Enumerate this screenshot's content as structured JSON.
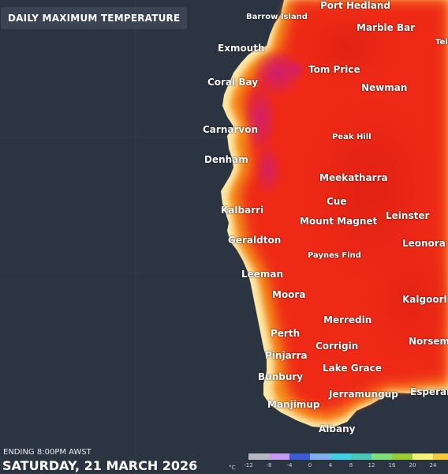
{
  "header": {
    "title": "DAILY MAXIMUM TEMPERATURE"
  },
  "colors": {
    "ocean": "#2b3441",
    "land_hot": "#ef2b16",
    "land_coast": "#f79a1c",
    "land_pale": "#fdeeb4",
    "purple_hotspot": "#c81a84"
  },
  "places": [
    {
      "name": "Barrow Island",
      "size": "small"
    },
    {
      "name": "Port Hedland",
      "size": "big"
    },
    {
      "name": "Marble Bar",
      "size": "big"
    },
    {
      "name": "Telf",
      "size": "small"
    },
    {
      "name": "Exmouth",
      "size": "big"
    },
    {
      "name": "Tom Price",
      "size": "big"
    },
    {
      "name": "Coral Bay",
      "size": "big"
    },
    {
      "name": "Newman",
      "size": "big"
    },
    {
      "name": "Carnarvon",
      "size": "big"
    },
    {
      "name": "Peak Hill",
      "size": "small"
    },
    {
      "name": "Denham",
      "size": "big"
    },
    {
      "name": "Meekatharra",
      "size": "big"
    },
    {
      "name": "Cue",
      "size": "big"
    },
    {
      "name": "Kalbarri",
      "size": "big"
    },
    {
      "name": "Leinster",
      "size": "big"
    },
    {
      "name": "Mount Magnet",
      "size": "big"
    },
    {
      "name": "Geraldton",
      "size": "big"
    },
    {
      "name": "Leonora",
      "size": "big"
    },
    {
      "name": "Paynes Find",
      "size": "small"
    },
    {
      "name": "Leeman",
      "size": "big"
    },
    {
      "name": "Moora",
      "size": "big"
    },
    {
      "name": "Kalgoorlie",
      "size": "big"
    },
    {
      "name": "Merredin",
      "size": "big"
    },
    {
      "name": "Perth",
      "size": "big"
    },
    {
      "name": "Norseman",
      "size": "big"
    },
    {
      "name": "Corrigin",
      "size": "big"
    },
    {
      "name": "Pinjarra",
      "size": "big"
    },
    {
      "name": "Lake Grace",
      "size": "big"
    },
    {
      "name": "Bunbury",
      "size": "big"
    },
    {
      "name": "Esperance",
      "size": "big"
    },
    {
      "name": "Jerramungup",
      "size": "big"
    },
    {
      "name": "Manjimup",
      "size": "big"
    },
    {
      "name": "Albany",
      "size": "big"
    }
  ],
  "footer": {
    "ending": "ENDING 8:00PM AWST",
    "date": "SATURDAY, 21 MARCH 2026"
  },
  "legend": {
    "unit": "°C",
    "labels": [
      "-12",
      "-8",
      "-4",
      "0",
      "4",
      "8",
      "12",
      "16",
      "20",
      "24"
    ],
    "swatches": [
      "#b5b8bd",
      "#c79af0",
      "#3a5bd8",
      "#7fb0ee",
      "#3fd0e6",
      "#4ac7b8",
      "#7fe07a",
      "#9acd32",
      "#f5f07a",
      "#f5c83a"
    ]
  }
}
